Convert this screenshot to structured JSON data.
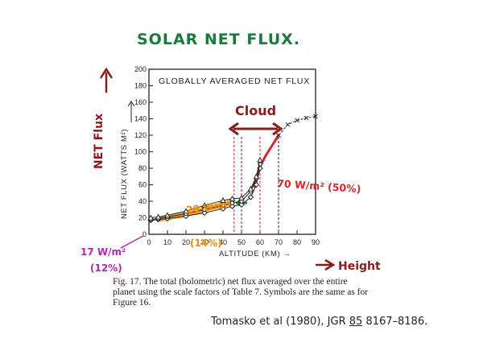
{
  "heading": "SOLAR NET FLUX.",
  "chart_data": {
    "type": "line",
    "title": "GLOBALLY AVERAGED NET FLUX",
    "xlabel": "ALTITUDE (KM)",
    "ylabel": "NET FLUX (WATTS M²)",
    "xlim": [
      0,
      90
    ],
    "ylim": [
      0,
      200
    ],
    "x_ticks": [
      "0",
      "10",
      "20",
      "30",
      "40",
      "50",
      "60",
      "70",
      "80",
      "90"
    ],
    "y_ticks": [
      "0",
      "20",
      "40",
      "60",
      "80",
      "100",
      "120",
      "140",
      "160",
      "180",
      "200"
    ],
    "grid": false,
    "series": [
      {
        "marker": "diamond",
        "values": [
          [
            1,
            17
          ],
          [
            5,
            18
          ],
          [
            10,
            19
          ],
          [
            20,
            22
          ],
          [
            30,
            26
          ],
          [
            40,
            31
          ],
          [
            45,
            34
          ],
          [
            50,
            36
          ],
          [
            55,
            45
          ],
          [
            58,
            60
          ],
          [
            60,
            80
          ]
        ]
      },
      {
        "marker": "circle",
        "values": [
          [
            1,
            18
          ],
          [
            5,
            19
          ],
          [
            10,
            21
          ],
          [
            20,
            25
          ],
          [
            30,
            30
          ],
          [
            40,
            35
          ],
          [
            45,
            38
          ],
          [
            50,
            40
          ],
          [
            55,
            52
          ],
          [
            58,
            68
          ],
          [
            60,
            85
          ]
        ]
      },
      {
        "marker": "triangle",
        "values": [
          [
            1,
            20
          ],
          [
            5,
            21
          ],
          [
            10,
            23
          ],
          [
            20,
            28
          ],
          [
            30,
            35
          ],
          [
            40,
            41
          ],
          [
            45,
            43
          ],
          [
            50,
            44
          ],
          [
            55,
            55
          ],
          [
            58,
            70
          ],
          [
            60,
            90
          ]
        ]
      },
      {
        "marker": "x",
        "dashed": true,
        "values": [
          [
            70,
            120
          ],
          [
            75,
            133
          ],
          [
            80,
            138
          ],
          [
            85,
            141
          ],
          [
            90,
            143
          ]
        ]
      }
    ],
    "vertical_markers": [
      46,
      50,
      60,
      70
    ],
    "annotations": {
      "cloud": "Cloud",
      "flux_70": "70 W/m² (50%)",
      "flux_20": "20 W/m²",
      "pct_14": "(14%)",
      "flux_17": "17 W/m²",
      "pct_12": "(12%)",
      "net_flux_axis": "NET Flux",
      "height_axis": "Height"
    },
    "colors": {
      "cloud_arrow": "#8b1a1a",
      "red": "#d8262c",
      "orange": "#f08c00",
      "green": "#1a8a3a",
      "purple": "#b02ab0",
      "axis": "#222222"
    }
  },
  "caption": {
    "line1": "Fig. 17.   The total (bolometric) net flux averaged over the entire",
    "line2": "planet using the scale factors of Table 7. Symbols are the same as for",
    "line3": "Figure 16."
  },
  "citation": {
    "prefix": "Tomasko et al (1980), JGR ",
    "volume": "85",
    "pages": " 8167–8186."
  }
}
